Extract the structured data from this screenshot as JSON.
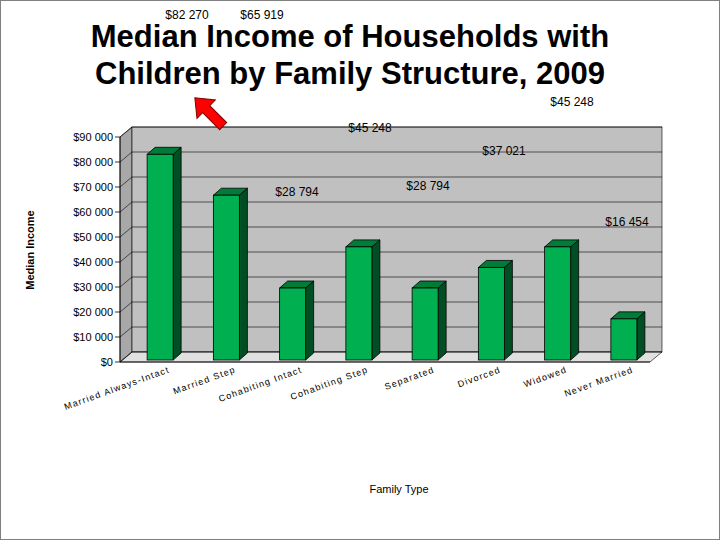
{
  "chart_data": {
    "type": "bar",
    "title": "Median Income of Households with Children by Family Structure, 2009",
    "x_label": "Family Type",
    "y_label": "Median Income",
    "categories": [
      "Married Always-Intact",
      "Married Step",
      "Cohabiting Intact",
      "Cohabiting Step",
      "Separated",
      "Divorced",
      "Widowed",
      "Never Married"
    ],
    "values": [
      82270,
      65919,
      28794,
      45248,
      28794,
      37021,
      45248,
      16454
    ],
    "value_labels": [
      "$82 270",
      "$65 919",
      "$28 794",
      "$45 248",
      "$28 794",
      "$37 021",
      "$45 248",
      "$16 454"
    ],
    "color": "#00b050",
    "ylim": [
      0,
      90000
    ],
    "yticks": [
      {
        "value": 0,
        "label": "$0"
      },
      {
        "value": 10000,
        "label": "$10 000"
      },
      {
        "value": 20000,
        "label": "$20 000"
      },
      {
        "value": 30000,
        "label": "$30 000"
      },
      {
        "value": 40000,
        "label": "$40 000"
      },
      {
        "value": 50000,
        "label": "$50 000"
      },
      {
        "value": 60000,
        "label": "$60 000"
      },
      {
        "value": 70000,
        "label": "$70 000"
      },
      {
        "value": 80000,
        "label": "$80 000"
      },
      {
        "value": 90000,
        "label": "$90 000"
      }
    ],
    "grid": true,
    "data_labels": true
  }
}
